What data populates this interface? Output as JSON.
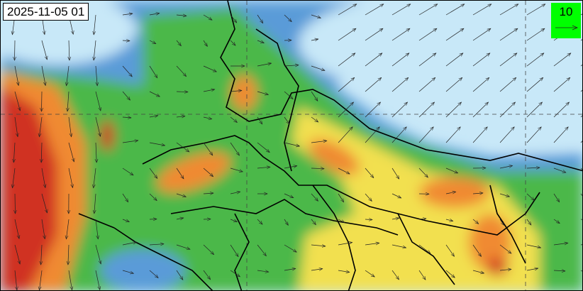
{
  "map": {
    "timestamp": "2025-11-05 01",
    "vector_legend_value": "10",
    "colors": {
      "background": "#c8e8f8",
      "low": "#5a9bd8",
      "mid": "#4cb848",
      "moderate": "#f2e050",
      "high": "#f08a30",
      "very_high": "#d03020",
      "legend_box": "#00ff00"
    },
    "overlays": [
      "wind-vectors",
      "state-boundaries",
      "lat-lon-gridlines"
    ]
  }
}
